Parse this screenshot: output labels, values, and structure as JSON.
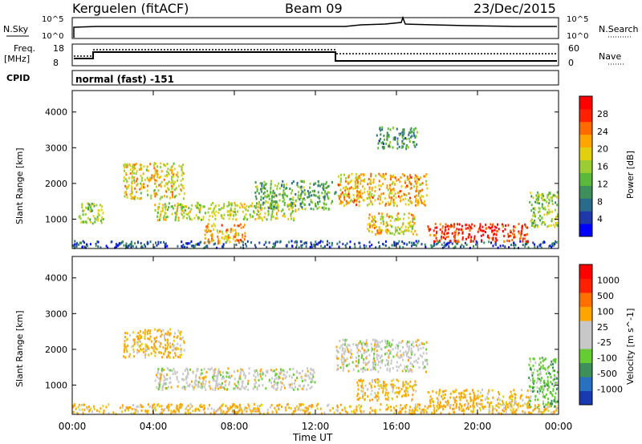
{
  "header": {
    "station": "Kerguelen (fitACF)",
    "beam": "Beam 09",
    "date": "23/Dec/2015"
  },
  "panels": {
    "nsky": {
      "left_label": "N.Sky",
      "right_label": "N.Search",
      "tick_top": "10^5",
      "tick_bottom": "10^0"
    },
    "freq": {
      "left_label_1": "Freq.",
      "left_label_2": "[MHz]",
      "right_label": "Nave",
      "left_ticks": [
        "18",
        "8"
      ],
      "right_ticks": [
        "60",
        "0"
      ]
    },
    "cpid": {
      "label": "CPID",
      "mode_text": "normal (fast) -151"
    }
  },
  "chart_data": [
    {
      "type": "heatmap",
      "title": "Power",
      "xlabel": "",
      "ylabel": "Slant Range [km]",
      "x_ticks": [
        "00:00",
        "04:00",
        "08:00",
        "12:00",
        "16:00",
        "20:00",
        "00:00"
      ],
      "y_ticks": [
        1000,
        2000,
        3000,
        4000
      ],
      "ylim": [
        180,
        4600
      ],
      "colorbar": {
        "label": "Power [dB]",
        "ticks": [
          "28",
          "24",
          "20",
          "16",
          "12",
          "8",
          "4"
        ],
        "range": [
          0,
          30
        ],
        "colors": [
          "#0000ff",
          "#1f3aa8",
          "#2a6a8a",
          "#3e8f5a",
          "#5bb83a",
          "#9acd32",
          "#e0d010",
          "#ffa500",
          "#ff6a00",
          "#ff2000",
          "#ff0000"
        ]
      },
      "scatter_regions": [
        {
          "t0": 0.0,
          "t1": 24.0,
          "r0": 180,
          "r1": 420,
          "level": 6
        },
        {
          "t0": 0.3,
          "t1": 1.5,
          "r0": 900,
          "r1": 1500,
          "level": 14
        },
        {
          "t0": 2.5,
          "t1": 5.5,
          "r0": 1600,
          "r1": 2600,
          "level": 18
        },
        {
          "t0": 4.0,
          "t1": 11.0,
          "r0": 1000,
          "r1": 1500,
          "level": 16
        },
        {
          "t0": 6.5,
          "t1": 8.5,
          "r0": 350,
          "r1": 900,
          "level": 20
        },
        {
          "t0": 9.0,
          "t1": 13.0,
          "r0": 1300,
          "r1": 2100,
          "level": 12
        },
        {
          "t0": 13.0,
          "t1": 17.5,
          "r0": 1400,
          "r1": 2300,
          "level": 20
        },
        {
          "t0": 14.5,
          "t1": 17.0,
          "r0": 600,
          "r1": 1200,
          "level": 18
        },
        {
          "t0": 15.0,
          "t1": 17.0,
          "r0": 3000,
          "r1": 3600,
          "level": 10
        },
        {
          "t0": 17.5,
          "t1": 22.5,
          "r0": 400,
          "r1": 900,
          "level": 26
        },
        {
          "t0": 22.5,
          "t1": 24.0,
          "r0": 800,
          "r1": 1800,
          "level": 14
        }
      ]
    },
    {
      "type": "heatmap",
      "title": "Velocity",
      "xlabel": "Time UT",
      "ylabel": "Slant Range [km]",
      "x_ticks": [
        "00:00",
        "04:00",
        "08:00",
        "12:00",
        "16:00",
        "20:00",
        "00:00"
      ],
      "y_ticks": [
        1000,
        2000,
        3000,
        4000
      ],
      "ylim": [
        180,
        4600
      ],
      "colorbar": {
        "label": "Velocity [m s^-1]",
        "ticks": [
          "1000",
          "500",
          "100",
          "25",
          "-25",
          "-100",
          "-500",
          "-1000"
        ],
        "colors": [
          "#1a3ab0",
          "#2a70c0",
          "#3e8f5a",
          "#66cc33",
          "#c8c8c8",
          "#c8c8c8",
          "#ffa500",
          "#ff7000",
          "#ff2000",
          "#ff0000"
        ]
      },
      "scatter_regions": [
        {
          "t0": 0.0,
          "t1": 24.0,
          "r0": 180,
          "r1": 500,
          "level": "orange"
        },
        {
          "t0": 2.5,
          "t1": 5.5,
          "r0": 1800,
          "r1": 2600,
          "level": "orange"
        },
        {
          "t0": 4.0,
          "t1": 12.0,
          "r0": 900,
          "r1": 1500,
          "level": "gray"
        },
        {
          "t0": 13.0,
          "t1": 17.5,
          "r0": 1400,
          "r1": 2300,
          "level": "gray"
        },
        {
          "t0": 14.0,
          "t1": 17.0,
          "r0": 600,
          "r1": 1200,
          "level": "orange"
        },
        {
          "t0": 17.5,
          "t1": 22.5,
          "r0": 400,
          "r1": 900,
          "level": "orange"
        },
        {
          "t0": 22.5,
          "t1": 24.0,
          "r0": 400,
          "r1": 1800,
          "level": "green"
        }
      ]
    }
  ]
}
